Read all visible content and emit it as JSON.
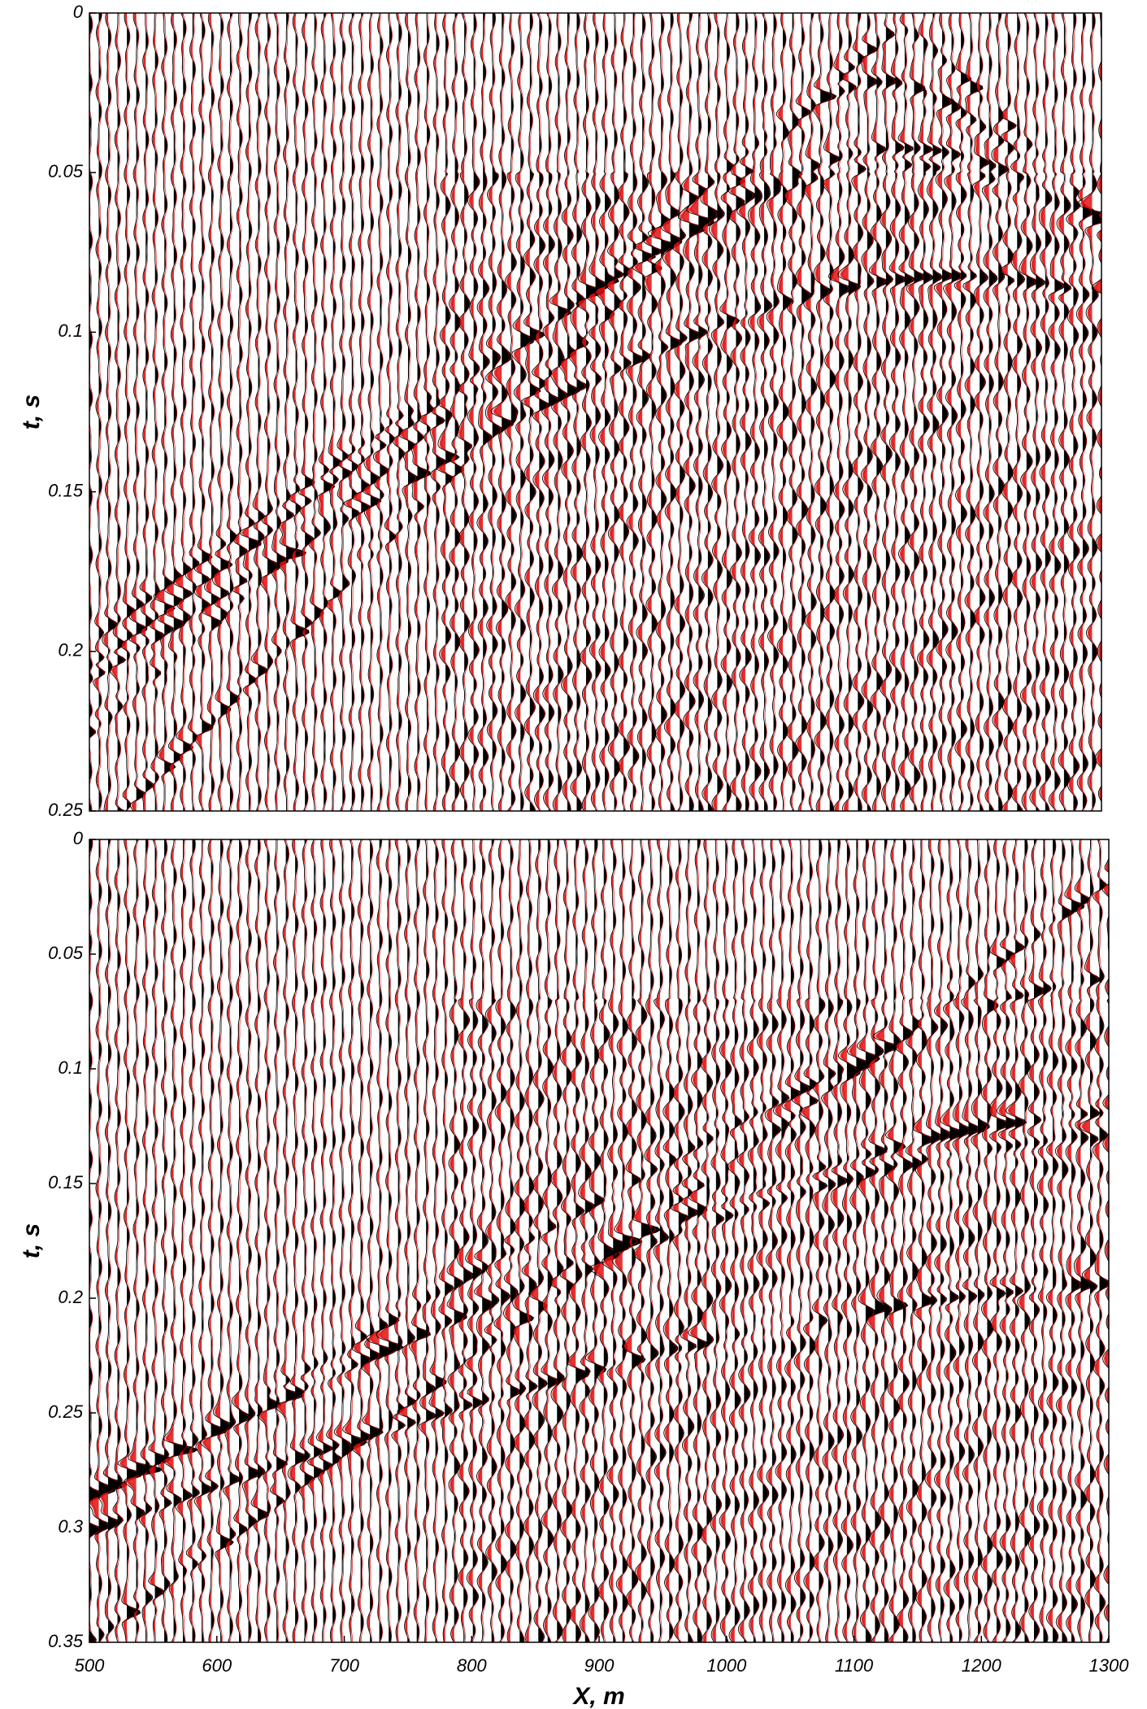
{
  "chart_data": [
    {
      "type": "seismic",
      "ylabel": "t, s",
      "ylim": [
        0,
        0.25
      ],
      "yticks": [
        0,
        0.05,
        0.1,
        0.15,
        0.2,
        0.25
      ]
    },
    {
      "type": "seismic",
      "ylabel": "t, s",
      "xlabel": "X, m",
      "xlim": [
        500,
        1300
      ],
      "xticks": [
        500,
        600,
        700,
        800,
        900,
        1000,
        1100,
        1200,
        1300
      ],
      "ylim": [
        0,
        0.35
      ],
      "yticks": [
        0,
        0.05,
        0.1,
        0.15,
        0.2,
        0.25,
        0.3,
        0.35
      ]
    }
  ]
}
